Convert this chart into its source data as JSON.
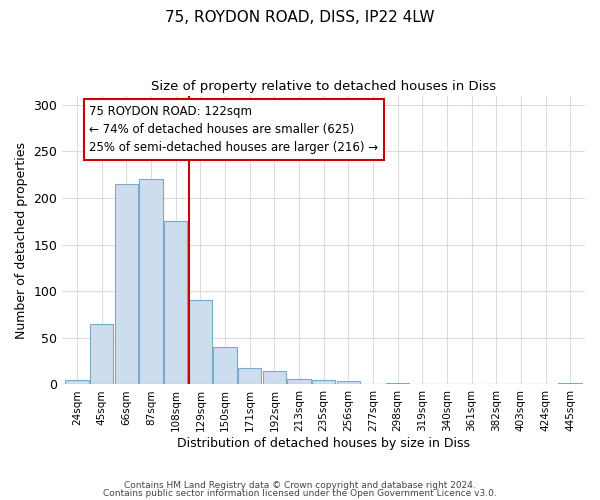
{
  "title1": "75, ROYDON ROAD, DISS, IP22 4LW",
  "title2": "Size of property relative to detached houses in Diss",
  "xlabel": "Distribution of detached houses by size in Diss",
  "ylabel": "Number of detached properties",
  "bar_labels": [
    "24sqm",
    "45sqm",
    "66sqm",
    "87sqm",
    "108sqm",
    "129sqm",
    "150sqm",
    "171sqm",
    "192sqm",
    "213sqm",
    "235sqm",
    "256sqm",
    "277sqm",
    "298sqm",
    "319sqm",
    "340sqm",
    "361sqm",
    "382sqm",
    "403sqm",
    "424sqm",
    "445sqm"
  ],
  "bar_values": [
    5,
    65,
    215,
    220,
    175,
    91,
    40,
    18,
    14,
    6,
    5,
    4,
    0,
    2,
    0,
    0,
    0,
    0,
    0,
    0,
    2
  ],
  "bar_color": "#ccdded",
  "bar_edge_color": "#7aaac8",
  "background_color": "#ffffff",
  "grid_color": "#dddddd",
  "vline_x": 5.0,
  "vline_color": "#cc0000",
  "annotation_text": "75 ROYDON ROAD: 122sqm\n← 74% of detached houses are smaller (625)\n25% of semi-detached houses are larger (216) →",
  "annotation_box_color": "#ffffff",
  "annotation_box_edge": "#cc0000",
  "ylim": [
    0,
    310
  ],
  "yticks": [
    0,
    50,
    100,
    150,
    200,
    250,
    300
  ],
  "footer1": "Contains HM Land Registry data © Crown copyright and database right 2024.",
  "footer2": "Contains public sector information licensed under the Open Government Licence v3.0."
}
